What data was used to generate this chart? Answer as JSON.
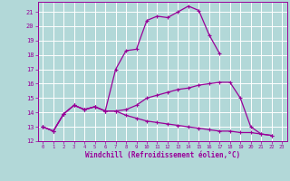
{
  "background_color": "#b2d8d8",
  "grid_color": "#ffffff",
  "line_color": "#990099",
  "xlabel": "Windchill (Refroidissement éolien,°C)",
  "xlim": [
    -0.5,
    23.5
  ],
  "ylim": [
    12,
    21.7
  ],
  "yticks": [
    12,
    13,
    14,
    15,
    16,
    17,
    18,
    19,
    20,
    21
  ],
  "xticks": [
    0,
    1,
    2,
    3,
    4,
    5,
    6,
    7,
    8,
    9,
    10,
    11,
    12,
    13,
    14,
    15,
    16,
    17,
    18,
    19,
    20,
    21,
    22,
    23
  ],
  "line1_x": [
    0,
    1,
    2,
    3,
    4,
    5,
    6,
    7,
    8,
    9,
    10,
    11,
    12,
    13,
    14,
    15,
    16,
    17
  ],
  "line1_y": [
    13.0,
    12.7,
    13.9,
    14.5,
    14.2,
    14.4,
    14.1,
    17.0,
    18.3,
    18.4,
    20.4,
    20.7,
    20.6,
    21.0,
    21.4,
    21.1,
    19.4,
    18.1
  ],
  "line2_x": [
    0,
    1,
    2,
    3,
    4,
    5,
    6,
    7,
    8,
    9,
    10,
    11,
    12,
    13,
    14,
    15,
    16,
    17,
    18,
    19,
    20,
    21,
    22
  ],
  "line2_y": [
    13.0,
    12.7,
    13.9,
    14.5,
    14.2,
    14.4,
    14.1,
    14.1,
    13.8,
    13.6,
    13.4,
    13.3,
    13.2,
    13.1,
    13.0,
    12.9,
    12.8,
    12.7,
    12.7,
    12.6,
    12.6,
    12.5,
    12.4
  ],
  "line3_x": [
    0,
    1,
    2,
    3,
    4,
    5,
    6,
    7,
    8,
    9,
    10,
    11,
    12,
    13,
    14,
    15,
    16,
    17,
    18,
    19,
    20,
    21,
    22
  ],
  "line3_y": [
    13.0,
    12.7,
    13.9,
    14.5,
    14.2,
    14.4,
    14.1,
    14.1,
    14.2,
    14.5,
    15.0,
    15.2,
    15.4,
    15.6,
    15.7,
    15.9,
    16.0,
    16.1,
    16.1,
    15.0,
    13.0,
    12.5,
    12.4
  ]
}
